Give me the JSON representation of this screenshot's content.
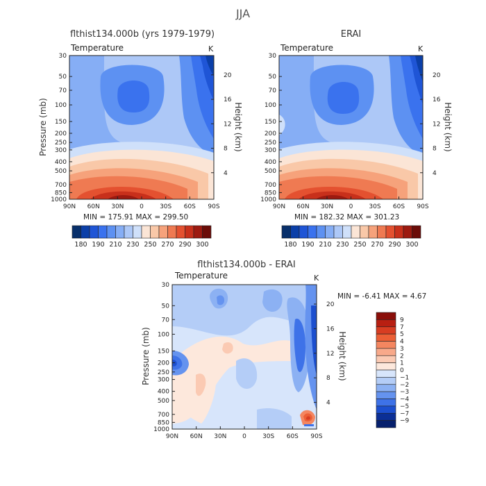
{
  "figure": {
    "title": "JJA"
  },
  "chart_data": [
    {
      "type": "heatmap",
      "title": "flthist134.000b (yrs 1979-1979)",
      "variable": "Temperature",
      "units": "K",
      "ylabel": "Pressure (mb)",
      "ylabel_right": "Height (km)",
      "x_ticks": [
        "90N",
        "60N",
        "30N",
        "0",
        "30S",
        "60S",
        "90S"
      ],
      "y_ticks": [
        "30",
        "50",
        "70",
        "100",
        "150",
        "200",
        "250",
        "300",
        "400",
        "500",
        "700",
        "850",
        "1000"
      ],
      "y_ticks_right": [
        "20",
        "16",
        "12",
        "8",
        "4"
      ],
      "stats": "MIN = 175.91   MAX = 299.50",
      "colorbar_labels": [
        "180",
        "190",
        "210",
        "230",
        "250",
        "270",
        "290",
        "300"
      ]
    },
    {
      "type": "heatmap",
      "title": "ERAI",
      "variable": "Temperature",
      "units": "K",
      "ylabel_right": "Height (km)",
      "x_ticks": [
        "90N",
        "60N",
        "30N",
        "0",
        "30S",
        "60S",
        "90S"
      ],
      "y_ticks": [
        "30",
        "50",
        "70",
        "100",
        "150",
        "200",
        "250",
        "300",
        "400",
        "500",
        "700",
        "850",
        "1000"
      ],
      "y_ticks_right": [
        "20",
        "16",
        "12",
        "8",
        "4"
      ],
      "stats": "MIN = 182.32   MAX = 301.23",
      "colorbar_labels": [
        "180",
        "190",
        "210",
        "230",
        "250",
        "270",
        "290",
        "300"
      ]
    },
    {
      "type": "heatmap",
      "title": "flthist134.000b - ERAI",
      "variable": "Temperature",
      "units": "K",
      "ylabel": "Pressure (mb)",
      "ylabel_right": "Height (km)",
      "x_ticks": [
        "90N",
        "60N",
        "30N",
        "0",
        "30S",
        "60S",
        "90S"
      ],
      "y_ticks": [
        "30",
        "50",
        "70",
        "100",
        "150",
        "200",
        "250",
        "300",
        "400",
        "500",
        "700",
        "850",
        "1000"
      ],
      "y_ticks_right": [
        "20",
        "16",
        "12",
        "8",
        "4"
      ],
      "stats": "MIN =   -6.41   MAX =    4.67",
      "colorbar_labels": [
        "9",
        "7",
        "5",
        "4",
        "3",
        "2",
        "1",
        "0",
        "-1",
        "-2",
        "-3",
        "-4",
        "-5",
        "-7",
        "-9"
      ]
    }
  ],
  "colors": {
    "abs_scale": [
      "#08306b",
      "#0b3fa8",
      "#1f55d6",
      "#3a72ee",
      "#5d91f2",
      "#86aef5",
      "#adc8f7",
      "#cfe0fa",
      "#fbe5d6",
      "#f9c8a8",
      "#f6a27b",
      "#ef7a52",
      "#e45130",
      "#c8301b",
      "#9d1a10",
      "#6b0c08"
    ],
    "diff_scale": [
      "#8a0e09",
      "#b81f12",
      "#d83d22",
      "#ec5f36",
      "#f48660",
      "#f8a98a",
      "#fbcab3",
      "#fde8dc",
      "#d7e5fb",
      "#b4cdf7",
      "#8cb1f3",
      "#6593ef",
      "#3e72e8",
      "#1c4fcf",
      "#0b2f96",
      "#06206d"
    ]
  }
}
